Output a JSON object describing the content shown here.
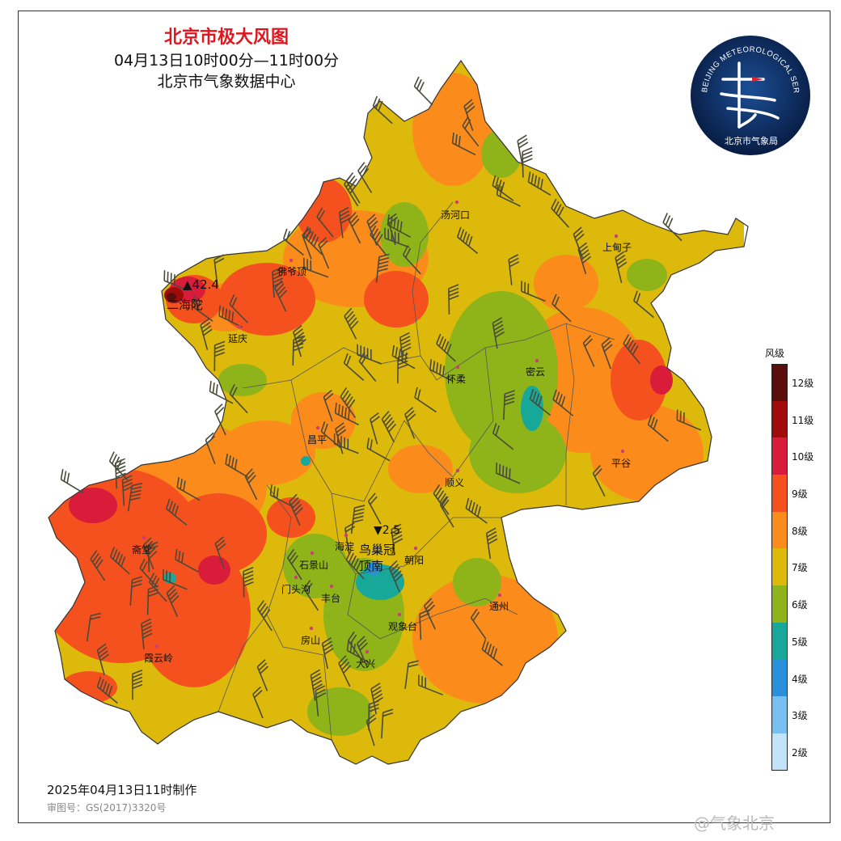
{
  "title": {
    "main": "北京市极大风图",
    "time_range": "04月13日10时00分—11时00分",
    "source": "北京市气象数据中心"
  },
  "footer": {
    "produced": "2025年04月13日11时制作",
    "review_no": "审图号：GS(2017)3320号"
  },
  "watermark": "@气象北京",
  "logo": {
    "ring_text": "BEIJING METEOROLOGICAL SERVICE",
    "cn_name": "北京市气象局",
    "icon": "weather-vane-emblem"
  },
  "legend": {
    "title": "风级",
    "levels": [
      {
        "label": "12级",
        "color": "#5a0f0c"
      },
      {
        "label": "11级",
        "color": "#a00c0c"
      },
      {
        "label": "10级",
        "color": "#d81c3a"
      },
      {
        "label": "9级",
        "color": "#f4511e"
      },
      {
        "label": "8级",
        "color": "#fb8c1c"
      },
      {
        "label": "7级",
        "color": "#dcb90a"
      },
      {
        "label": "6级",
        "color": "#8fb41a"
      },
      {
        "label": "5级",
        "color": "#17a89a"
      },
      {
        "label": "4级",
        "color": "#2a90dc"
      },
      {
        "label": "3级",
        "color": "#79c0f2"
      },
      {
        "label": "2级",
        "color": "#c3e3fa"
      }
    ]
  },
  "extremes": {
    "max": {
      "value": "42.4",
      "station": "二海陀",
      "marker": "▲"
    },
    "min": {
      "value": "2.5",
      "station": "鸟巢冠顶南",
      "marker": "▼"
    }
  },
  "places": {
    "tanghekou": "汤河口",
    "shangdianzi": "上甸子",
    "foyeding": "佛爷顶",
    "yanqing": "延庆",
    "huairou": "怀柔",
    "miyun": "密云",
    "changping": "昌平",
    "pinggu": "平谷",
    "shunyi": "顺义",
    "zhaitang": "斋堂",
    "haidian": "海淀",
    "shijingshan": "石景山",
    "chaoyang": "朝阳",
    "mentougou": "门头沟",
    "fengtai": "丰台",
    "tongzhou": "通州",
    "guanxiangtai": "观象台",
    "fangshan": "房山",
    "xiayunling": "霞云岭",
    "daxing": "大兴"
  }
}
